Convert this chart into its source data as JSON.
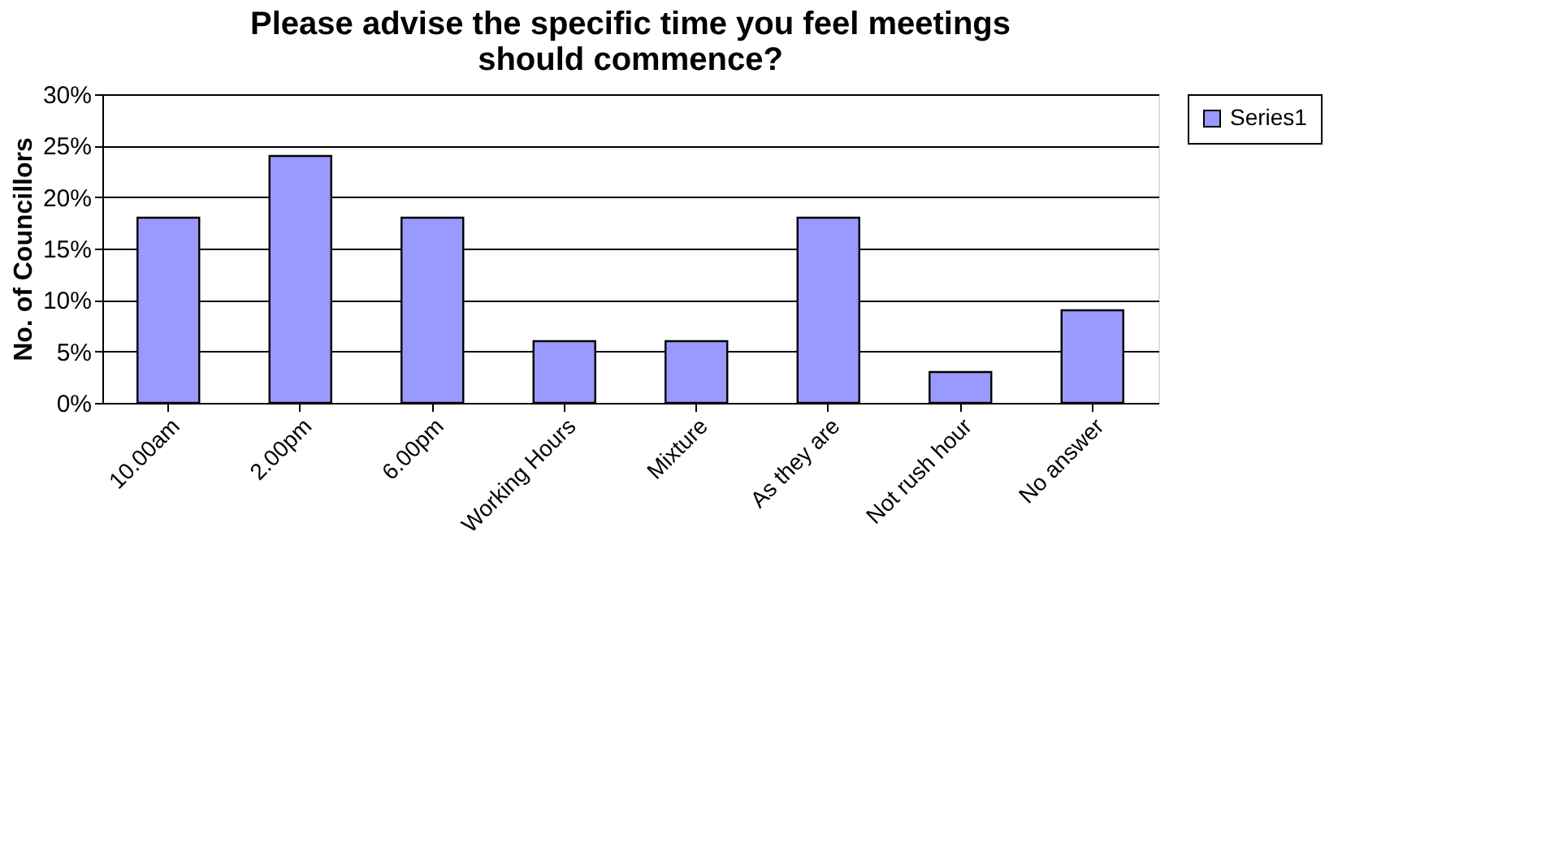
{
  "chart_data": {
    "type": "bar",
    "title": "Please advise the specific time you feel meetings should commence?",
    "ylabel": "No. of Councillors",
    "categories": [
      "10.00am",
      "2.00pm",
      "6.00pm",
      "Working Hours",
      "Mixture",
      "As they are",
      "Not rush hour",
      "No answer"
    ],
    "series": [
      {
        "name": "Series1",
        "color": "#9999ff",
        "values": [
          18,
          24,
          18,
          6,
          6,
          18,
          3,
          9
        ]
      }
    ],
    "ylim": [
      0,
      30
    ],
    "yticks": [
      {
        "value": 0,
        "label": "0%"
      },
      {
        "value": 5,
        "label": "5%"
      },
      {
        "value": 10,
        "label": "10%"
      },
      {
        "value": 15,
        "label": "15%"
      },
      {
        "value": 20,
        "label": "20%"
      },
      {
        "value": 25,
        "label": "25%"
      },
      {
        "value": 30,
        "label": "30%"
      }
    ],
    "grid": "y",
    "legend": "right"
  }
}
